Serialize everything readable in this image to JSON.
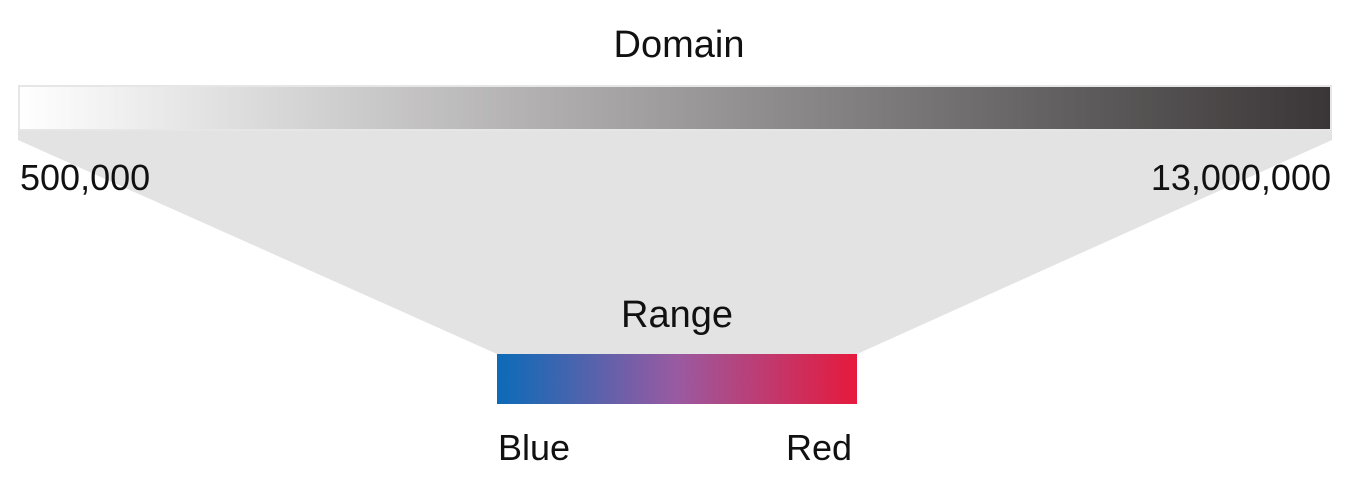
{
  "domain": {
    "title": "Domain",
    "min_label": "500,000",
    "max_label": "13,000,000",
    "gradient_start_color": "#ffffff",
    "gradient_end_color": "#3a3637"
  },
  "range": {
    "title": "Range",
    "min_label": "Blue",
    "max_label": "Red",
    "gradient_start_color": "#0b6bb8",
    "gradient_mid_color": "#9a5aa1",
    "gradient_end_color": "#e6193c"
  },
  "colors": {
    "funnel_fill": "#e3e3e3"
  }
}
